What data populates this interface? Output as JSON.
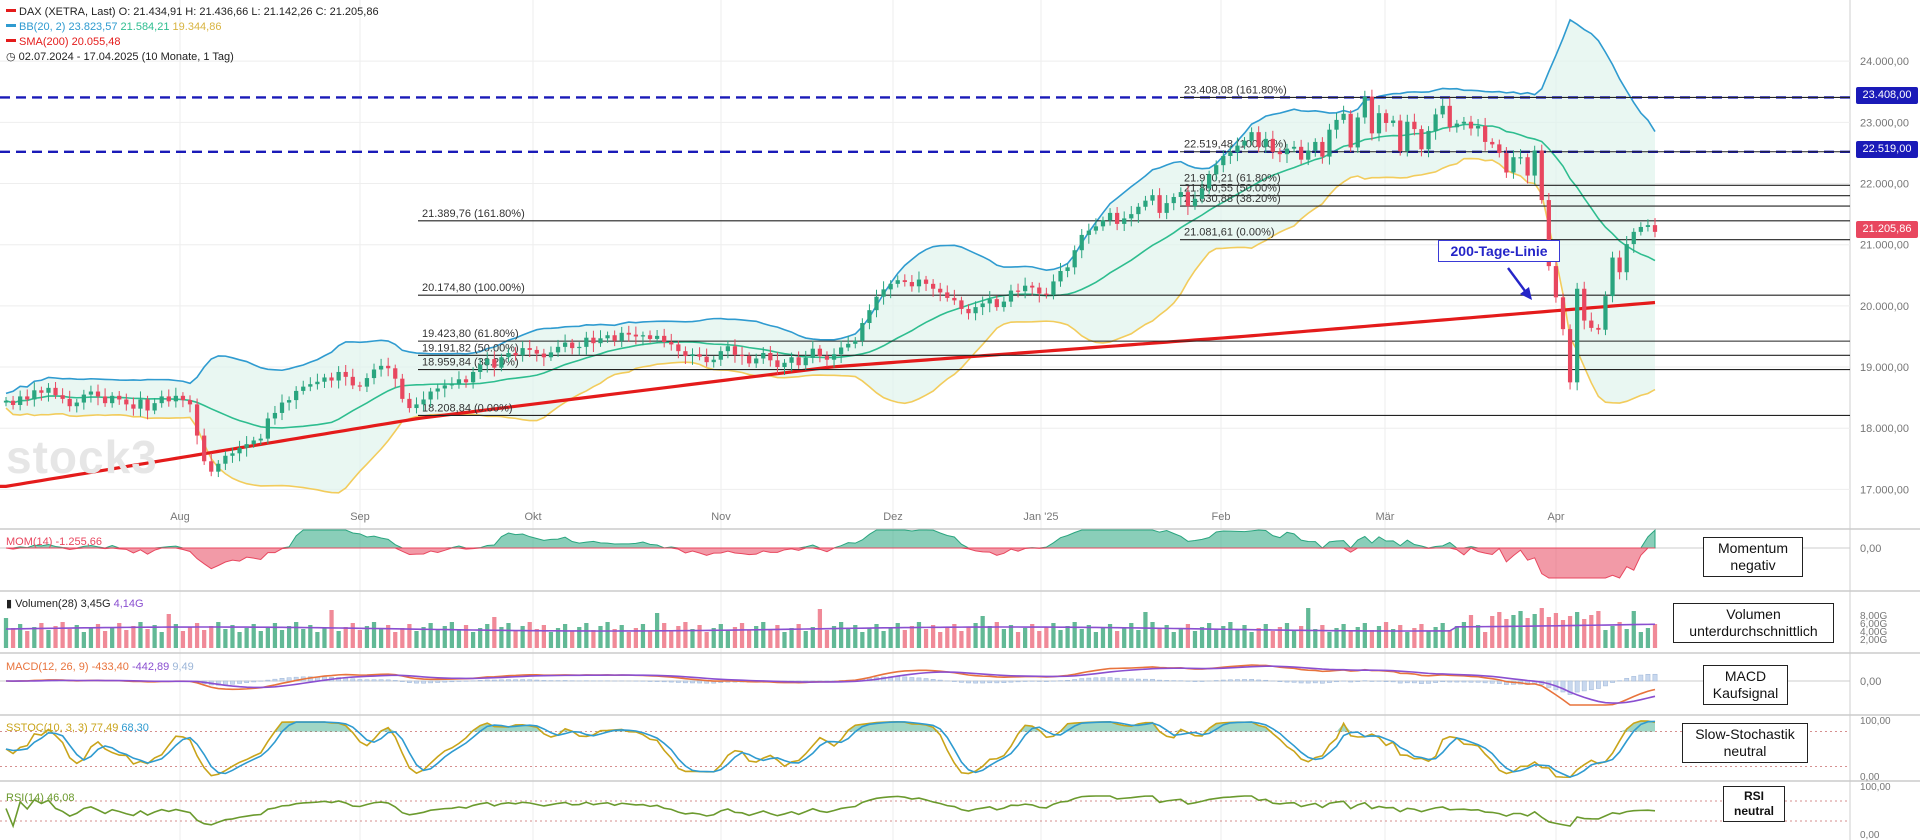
{
  "header": {
    "line1": "DAX (XETRA, Last)  O: 21.434,91  H: 21.436,66  L: 21.142,26  C: 21.205,86",
    "bb_label": "BB(20, 2)",
    "bb_v1": "23.823,57",
    "bb_v2": "21.584,21",
    "bb_v3": "19.344,86",
    "sma_label": "SMA(200)",
    "sma_value": "20.055,48",
    "range": "02.07.2024 - 17.04.2025  (10 Monate, 1 Tag)"
  },
  "colors": {
    "up": "#2aa57f",
    "down": "#e8475f",
    "bb_upper": "#2f9bd0",
    "bb_mid": "#2ebd8f",
    "bb_lower": "#f2cc5c",
    "sma": "#e41b1b",
    "fib_line": "#222222",
    "dash_line": "#1a1ab8"
  },
  "watermark": "stock3",
  "annotation_200": "200-Tage-Linie",
  "price_tags": {
    "upper": "23.408,00",
    "lower": "22.519,00",
    "last": "21.205,86"
  },
  "panels": {
    "mom": {
      "label": "MOM(14)",
      "value": "-1.255,66",
      "box_line1": "Momentum",
      "box_line2": "negativ"
    },
    "vol": {
      "label": "Volumen(28)",
      "value1": "3,45G",
      "value2": "4,14G",
      "box_line1": "Volumen",
      "box_line2": "unterdurchschnittlich"
    },
    "macd": {
      "label": "MACD(12, 26, 9)",
      "value1": "-433,40",
      "value2": "-442,89",
      "value3": "9,49",
      "box_line1": "MACD",
      "box_line2": "Kaufsignal"
    },
    "sstoc": {
      "label": "SSTOC(10, 3, 3)",
      "value1": "77,49",
      "value2": "68,30",
      "box_line1": "Slow-Stochastik",
      "box_line2": "neutral"
    },
    "rsi": {
      "label": "RSI(14)",
      "value": "46,08",
      "box_line1": "RSI",
      "box_line2": "neutral"
    }
  },
  "chart_data": {
    "type": "candlestick",
    "x_tick_labels": [
      "Aug",
      "Sep",
      "Okt",
      "Nov",
      "Dez",
      "Jan '25",
      "Feb",
      "Mär",
      "Apr"
    ],
    "y_ticks": [
      17000,
      18000,
      19000,
      20000,
      21000,
      22000,
      23000,
      24000
    ],
    "y_tick_labels": [
      "17.000,00",
      "18.000,00",
      "19.000,00",
      "20.000,00",
      "21.000,00",
      "22.000,00",
      "23.000,00",
      "24.000,00"
    ],
    "ylim": [
      16500,
      25000
    ],
    "grid": true,
    "horizontal_levels_dashed": [
      23408,
      22519
    ],
    "fib_short": [
      {
        "value": 23408.08,
        "label": "23.408,08 (161.80%)"
      },
      {
        "value": 22519.48,
        "label": "22.519,48 (100.00%)"
      },
      {
        "value": 21970.21,
        "label": "21.970,21 (61.80%)"
      },
      {
        "value": 21800.55,
        "label": "21.800,55 (50.00%)"
      },
      {
        "value": 21630.88,
        "label": "21.630,88 (38.20%)"
      },
      {
        "value": 21081.61,
        "label": "21.081,61 (0.00%)"
      }
    ],
    "fib_long": [
      {
        "value": 21389.76,
        "label": "21.389,76 (161.80%)"
      },
      {
        "value": 20174.8,
        "label": "20.174,80 (100.00%)"
      },
      {
        "value": 19423.8,
        "label": "19.423,80 (61.80%)"
      },
      {
        "value": 19191.82,
        "label": "19.191,82 (50.00%)"
      },
      {
        "value": 18959.84,
        "label": "18.959,84 (38.20%)"
      },
      {
        "value": 18208.84,
        "label": "18.208,84 (0.00%)"
      }
    ],
    "closes": [
      18450,
      18380,
      18520,
      18470,
      18620,
      18580,
      18660,
      18540,
      18480,
      18360,
      18420,
      18550,
      18600,
      18520,
      18410,
      18530,
      18470,
      18390,
      18320,
      18470,
      18290,
      18410,
      18520,
      18440,
      18530,
      18460,
      18390,
      17880,
      17460,
      17290,
      17420,
      17550,
      17590,
      17680,
      17740,
      17800,
      17830,
      18160,
      18250,
      18420,
      18460,
      18610,
      18680,
      18720,
      18760,
      18830,
      18780,
      18920,
      18840,
      18700,
      18680,
      18820,
      18960,
      19020,
      18980,
      18810,
      18480,
      18330,
      18390,
      18470,
      18600,
      18650,
      18700,
      18720,
      18800,
      18750,
      18920,
      19040,
      19130,
      18990,
      19160,
      19230,
      19190,
      19310,
      19280,
      19220,
      19160,
      19240,
      19330,
      19400,
      19310,
      19330,
      19480,
      19390,
      19470,
      19520,
      19430,
      19560,
      19530,
      19500,
      19520,
      19460,
      19510,
      19410,
      19370,
      19260,
      19180,
      19210,
      19170,
      19080,
      19120,
      19260,
      19340,
      19200,
      19180,
      19060,
      19140,
      19230,
      19110,
      19000,
      19070,
      19160,
      19030,
      19150,
      19300,
      19180,
      19120,
      19210,
      19320,
      19380,
      19430,
      19720,
      19930,
      20150,
      20270,
      20360,
      20420,
      20390,
      20320,
      20430,
      20360,
      20280,
      20220,
      20130,
      20090,
      19950,
      19880,
      19980,
      20040,
      20110,
      19980,
      20070,
      20250,
      20240,
      20330,
      20300,
      20200,
      20180,
      20400,
      20570,
      20630,
      20910,
      21160,
      21230,
      21300,
      21400,
      21520,
      21340,
      21430,
      21500,
      21620,
      21720,
      21810,
      21520,
      21680,
      21780,
      21860,
      21630,
      21750,
      21920,
      22150,
      22300,
      22450,
      22510,
      22620,
      22700,
      22840,
      22600,
      22730,
      22520,
      22480,
      22570,
      22600,
      22390,
      22540,
      22680,
      22440,
      22880,
      23040,
      23140,
      22590,
      23080,
      23420,
      22820,
      23150,
      22990,
      23030,
      22530,
      23010,
      22890,
      22560,
      22860,
      23130,
      23270,
      22920,
      22980,
      23010,
      22900,
      22940,
      22680,
      22640,
      22500,
      22180,
      22430,
      22430,
      22130,
      22540,
      21730,
      20650,
      20140,
      19620,
      18750,
      20280,
      19760,
      19640,
      19610,
      20160,
      20790,
      20550,
      21010,
      21210,
      21290,
      21320,
      21210
    ],
    "sma200": [
      17050,
      18160,
      19000,
      19500,
      20055
    ],
    "momentum": {
      "label": "MOM(14)",
      "last": -1255.66
    },
    "volume": {
      "label": "Volumen(28)",
      "last": "3,45G",
      "average": "4,14G",
      "y_tick_labels": [
        "2,00G",
        "4,00G",
        "6,00G",
        "8,00G"
      ]
    },
    "macd": {
      "label": "MACD(12, 26, 9)",
      "macd": -433.4,
      "signal": -442.89,
      "histogram": 9.49
    },
    "sstoc": {
      "label": "SSTOC(10, 3, 3)",
      "k": 77.49,
      "d": 68.3,
      "y_tick_labels": [
        "0,00",
        "100,00"
      ]
    },
    "rsi": {
      "label": "RSI(14)",
      "value": 46.08,
      "y_tick_labels": [
        "0,00",
        "100,00"
      ]
    },
    "zero_label": "0,00"
  }
}
